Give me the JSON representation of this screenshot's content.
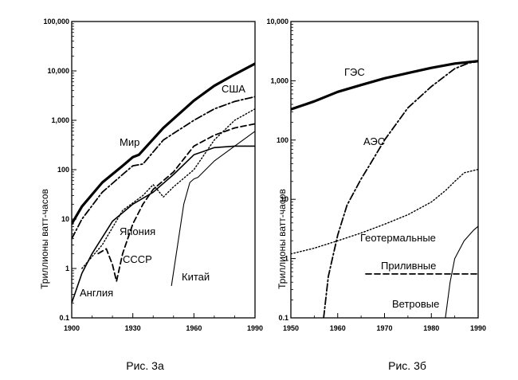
{
  "chart_data": [
    {
      "type": "line",
      "caption": "Рис. 3а",
      "ylabel": "Триллионы ватт-часов",
      "xlim": [
        1900,
        1990
      ],
      "ylim": [
        0.1,
        100000
      ],
      "yscale": "log",
      "x_ticks": [
        "1900",
        "1930",
        "1960",
        "1990"
      ],
      "y_ticks": [
        "0.1",
        "1",
        "10",
        "100",
        "1,000",
        "10,000",
        "100,000"
      ],
      "series": [
        {
          "name": "Мир",
          "style": "thick-solid",
          "points": [
            [
              1900,
              8
            ],
            [
              1905,
              18
            ],
            [
              1915,
              55
            ],
            [
              1925,
              120
            ],
            [
              1930,
              180
            ],
            [
              1933,
              200
            ],
            [
              1945,
              700
            ],
            [
              1960,
              2500
            ],
            [
              1970,
              5000
            ],
            [
              1980,
              8500
            ],
            [
              1990,
              14000
            ]
          ]
        },
        {
          "name": "США",
          "style": "dash-dot",
          "points": [
            [
              1900,
              4
            ],
            [
              1905,
              10
            ],
            [
              1915,
              35
            ],
            [
              1925,
              80
            ],
            [
              1930,
              120
            ],
            [
              1935,
              130
            ],
            [
              1945,
              400
            ],
            [
              1960,
              1000
            ],
            [
              1970,
              1700
            ],
            [
              1980,
              2400
            ],
            [
              1990,
              3000
            ]
          ]
        },
        {
          "name": "Япония",
          "style": "dotted",
          "points": [
            [
              1905,
              1
            ],
            [
              1915,
              3
            ],
            [
              1925,
              15
            ],
            [
              1935,
              30
            ],
            [
              1940,
              50
            ],
            [
              1945,
              28
            ],
            [
              1950,
              45
            ],
            [
              1960,
              100
            ],
            [
              1970,
              400
            ],
            [
              1980,
              1000
            ],
            [
              1990,
              1700
            ]
          ]
        },
        {
          "name": "СССР",
          "style": "dashed",
          "points": [
            [
              1913,
              2
            ],
            [
              1917,
              2.5
            ],
            [
              1920,
              1.2
            ],
            [
              1922,
              0.55
            ],
            [
              1925,
              2
            ],
            [
              1930,
              8
            ],
            [
              1935,
              20
            ],
            [
              1940,
              40
            ],
            [
              1950,
              90
            ],
            [
              1960,
              300
            ],
            [
              1970,
              500
            ],
            [
              1980,
              700
            ],
            [
              1990,
              850
            ]
          ]
        },
        {
          "name": "Англия",
          "style": "solid",
          "points": [
            [
              1900,
              0.2
            ],
            [
              1905,
              0.8
            ],
            [
              1910,
              2
            ],
            [
              1920,
              9
            ],
            [
              1930,
              20
            ],
            [
              1940,
              35
            ],
            [
              1950,
              80
            ],
            [
              1960,
              200
            ],
            [
              1970,
              280
            ],
            [
              1980,
              300
            ],
            [
              1990,
              300
            ]
          ]
        },
        {
          "name": "Китай",
          "style": "thin-solid",
          "points": [
            [
              1949,
              0.45
            ],
            [
              1952,
              3
            ],
            [
              1955,
              20
            ],
            [
              1958,
              55
            ],
            [
              1960,
              65
            ],
            [
              1962,
              70
            ],
            [
              1970,
              150
            ],
            [
              1980,
              300
            ],
            [
              1990,
              600
            ]
          ]
        }
      ]
    },
    {
      "type": "line",
      "caption": "Рис. 3б",
      "ylabel": "Триллионы ватт-часов",
      "xlim": [
        1950,
        1990
      ],
      "ylim": [
        0.1,
        10000
      ],
      "yscale": "log",
      "x_ticks": [
        "1950",
        "1960",
        "1970",
        "1980",
        "1990"
      ],
      "y_ticks": [
        "0.1",
        "1",
        "10",
        "100",
        "1,000",
        "10,000"
      ],
      "series": [
        {
          "name": "ГЭС",
          "style": "thick-solid",
          "points": [
            [
              1950,
              330
            ],
            [
              1955,
              450
            ],
            [
              1960,
              650
            ],
            [
              1965,
              850
            ],
            [
              1970,
              1100
            ],
            [
              1975,
              1350
            ],
            [
              1980,
              1650
            ],
            [
              1985,
              1950
            ],
            [
              1990,
              2150
            ]
          ]
        },
        {
          "name": "АЭС",
          "style": "dash-dot",
          "points": [
            [
              1957,
              0.1
            ],
            [
              1958,
              0.5
            ],
            [
              1960,
              2.5
            ],
            [
              1962,
              8
            ],
            [
              1965,
              22
            ],
            [
              1967,
              40
            ],
            [
              1970,
              100
            ],
            [
              1975,
              350
            ],
            [
              1980,
              800
            ],
            [
              1985,
              1600
            ],
            [
              1988,
              2000
            ],
            [
              1990,
              2100
            ]
          ]
        },
        {
          "name": "Геотермальные",
          "style": "dotted",
          "points": [
            [
              1950,
              1.2
            ],
            [
              1955,
              1.5
            ],
            [
              1960,
              2
            ],
            [
              1965,
              2.7
            ],
            [
              1970,
              3.8
            ],
            [
              1975,
              5.5
            ],
            [
              1980,
              9
            ],
            [
              1983,
              14
            ],
            [
              1985,
              20
            ],
            [
              1987,
              28
            ],
            [
              1990,
              32
            ]
          ]
        },
        {
          "name": "Приливные",
          "style": "dashed",
          "points": [
            [
              1966,
              0.55
            ],
            [
              1990,
              0.55
            ]
          ]
        },
        {
          "name": "Ветровые",
          "style": "thin-solid",
          "points": [
            [
              1983,
              0.1
            ],
            [
              1984,
              0.4
            ],
            [
              1985,
              1
            ],
            [
              1987,
              2
            ],
            [
              1989,
              3
            ],
            [
              1990,
              3.5
            ]
          ]
        }
      ]
    }
  ]
}
